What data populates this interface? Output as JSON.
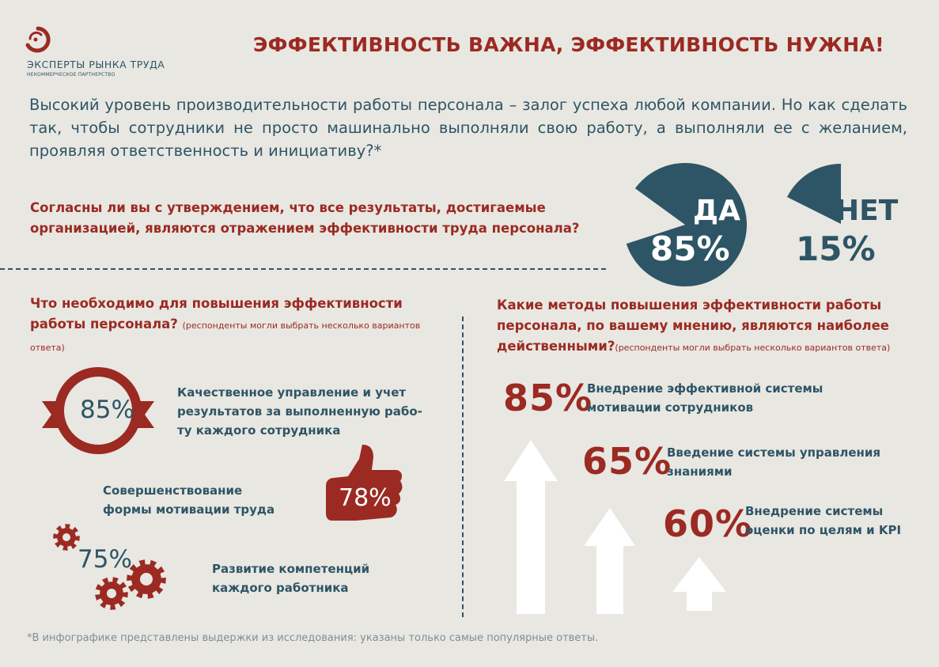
{
  "logo": {
    "name": "ЭКСПЕРТЫ РЫНКА ТРУДА",
    "subtitle": "НЕКОММЕРЧЕСКОЕ ПАРТНЕРСТВО"
  },
  "title": "ЭФФЕКТИВНОСТЬ ВАЖНА, ЭФФЕКТИВНОСТЬ НУЖНА!",
  "intro": "Высокий уровень производительности работы персонала – залог успеха любой компании. Но как сделать так, чтобы сотрудники не просто машинально выполняли свою работу, а выполняли ее с желанием, проявляя ответственность и инициативу?*",
  "survey": {
    "question": "Согласны ли вы с утверждением, что все результаты, достигаемые организацией, являются отражением эффективности труда персонала?",
    "yes": {
      "label": "ДА",
      "pct": "85%",
      "value": 85
    },
    "no": {
      "label": "НЕТ",
      "pct": "15%",
      "value": 15
    }
  },
  "left": {
    "heading": "Что необходимо для повышения эффективности работы персонала?",
    "note": "(респонденты могли выбрать несколько вариантов ответа)",
    "items": [
      {
        "pct": "85%",
        "text": "Качественное управление и учет результатов за выполненную рабо-ту каждого сотрудника"
      },
      {
        "pct": "78%",
        "text": "Совершенствование формы мотивации труда"
      },
      {
        "pct": "75%",
        "text": "Развитие компетенций каждого работника"
      }
    ]
  },
  "right": {
    "heading": "Какие методы повышения эффективности работы персонала, по вашему мнению, являются наиболее действенными?",
    "note": "(респонденты могли выбрать несколько вариантов ответа)",
    "items": [
      {
        "pct": "85%",
        "text": "Внедрение эффективной системы мотивации сотрудников"
      },
      {
        "pct": "65%",
        "text": "Введение системы управления знаниями"
      },
      {
        "pct": "60%",
        "text": "Внедрение системы оценки по целям и KPI"
      }
    ]
  },
  "footnote": "*В инфографике представлены выдержки из исследования: указаны только самые популярные ответы.",
  "colors": {
    "red": "#9b2a23",
    "teal": "#2d5566",
    "background": "#e9e7e1",
    "white": "#ffffff"
  }
}
